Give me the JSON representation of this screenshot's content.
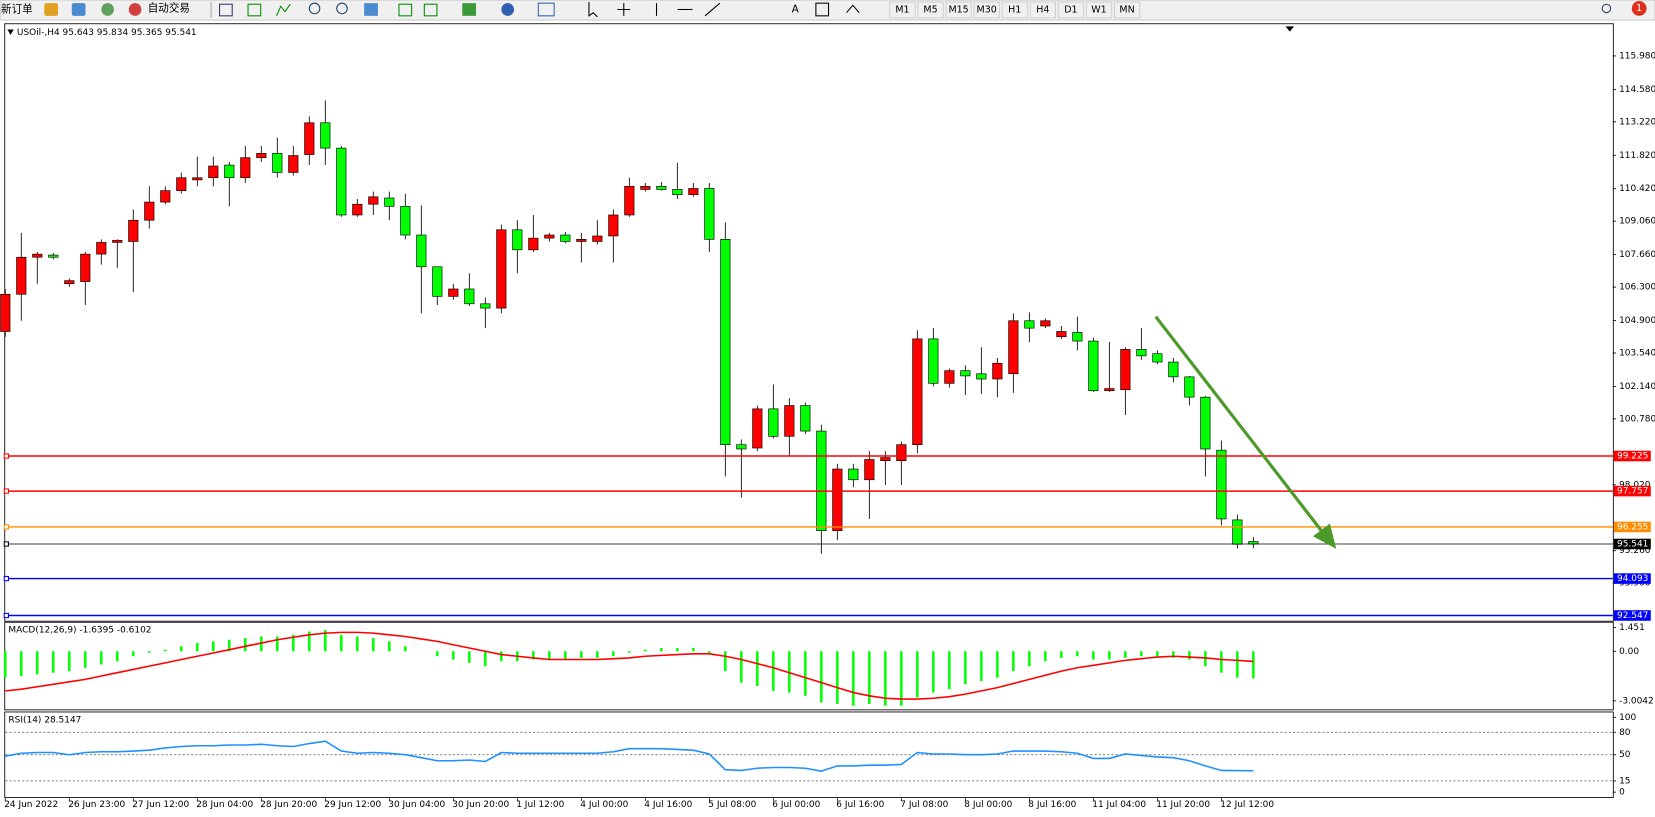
{
  "toolbar": {
    "new_order": "新订单",
    "auto_trading": "自动交易",
    "text_tool": "A",
    "timeframes": [
      "M1",
      "M5",
      "M15",
      "M30",
      "H1",
      "H4",
      "D1",
      "W1",
      "MN"
    ],
    "notifications": "1"
  },
  "chart_data": [
    {
      "type": "candlestick",
      "title": "USOil-,H4  95.643 95.834 95.365 95.541",
      "categories": [
        "24 Jun 2022",
        null,
        null,
        null,
        "26 Jun 23:00",
        null,
        null,
        null,
        "27 Jun 12:00",
        null,
        null,
        null,
        "28 Jun 04:00",
        null,
        null,
        null,
        "28 Jun 20:00",
        null,
        null,
        null,
        "29 Jun 12:00",
        null,
        null,
        null,
        "30 Jun 04:00",
        null,
        null,
        null,
        "30 Jun 20:00",
        null,
        null,
        null,
        "1 Jul 12:00",
        null,
        null,
        null,
        "4 Jul 00:00",
        null,
        null,
        null,
        "4 Jul 16:00",
        null,
        null,
        null,
        "5 Jul 08:00",
        null,
        null,
        null,
        "6 Jul 00:00",
        null,
        null,
        null,
        "6 Jul 16:00",
        null,
        null,
        null,
        "7 Jul 08:00",
        null,
        null,
        null,
        "8 Jul 00:00",
        null,
        null,
        null,
        "8 Jul 16:00",
        null,
        null,
        null,
        "11 Jul 04:00",
        null,
        null,
        null,
        "11 Jul 20:00",
        null,
        null,
        null,
        "12 Jul 12:00",
        null,
        null
      ],
      "ohlc": [
        [
          104.44,
          106.22,
          104.22,
          106.0
        ],
        [
          106.0,
          108.57,
          104.89,
          107.55
        ],
        [
          107.55,
          107.77,
          106.44,
          107.68
        ],
        [
          107.64,
          107.73,
          107.46,
          107.55
        ],
        [
          106.44,
          106.66,
          106.31,
          106.57
        ],
        [
          106.53,
          107.77,
          105.55,
          107.68
        ],
        [
          107.68,
          108.3,
          107.24,
          108.17
        ],
        [
          108.17,
          108.3,
          107.11,
          108.26
        ],
        [
          108.21,
          109.55,
          106.09,
          109.1
        ],
        [
          109.1,
          110.52,
          108.75,
          109.86
        ],
        [
          109.86,
          110.52,
          109.77,
          110.34
        ],
        [
          110.34,
          111.1,
          110.21,
          110.88
        ],
        [
          110.79,
          111.76,
          110.52,
          110.88
        ],
        [
          110.88,
          111.76,
          110.52,
          111.37
        ],
        [
          111.41,
          111.54,
          109.68,
          110.88
        ],
        [
          110.88,
          112.21,
          110.66,
          111.72
        ],
        [
          111.72,
          112.21,
          111.54,
          111.9
        ],
        [
          111.9,
          112.56,
          110.88,
          111.1
        ],
        [
          111.1,
          112.21,
          110.97,
          111.81
        ],
        [
          111.85,
          113.45,
          111.41,
          113.18
        ],
        [
          113.18,
          114.12,
          111.41,
          112.12
        ],
        [
          112.12,
          112.21,
          109.24,
          109.32
        ],
        [
          109.32,
          109.99,
          109.24,
          109.77
        ],
        [
          109.77,
          110.3,
          109.32,
          110.08
        ],
        [
          110.03,
          110.3,
          109.1,
          109.68
        ],
        [
          109.68,
          110.21,
          108.3,
          108.48
        ],
        [
          108.48,
          109.72,
          105.2,
          107.15
        ],
        [
          107.15,
          107.15,
          105.55,
          105.91
        ],
        [
          105.91,
          106.44,
          105.77,
          106.22
        ],
        [
          106.22,
          106.88,
          105.51,
          105.6
        ],
        [
          105.6,
          105.86,
          104.58,
          105.42
        ],
        [
          105.42,
          108.92,
          105.2,
          108.7
        ],
        [
          108.7,
          109.1,
          106.88,
          107.86
        ],
        [
          107.86,
          109.32,
          107.77,
          108.35
        ],
        [
          108.35,
          108.57,
          108.21,
          108.48
        ],
        [
          108.48,
          108.61,
          108.13,
          108.21
        ],
        [
          108.21,
          108.57,
          107.33,
          108.3
        ],
        [
          108.21,
          109.1,
          108.08,
          108.44
        ],
        [
          108.44,
          109.55,
          107.33,
          109.32
        ],
        [
          109.32,
          110.88,
          109.24,
          110.52
        ],
        [
          110.39,
          110.66,
          110.3,
          110.52
        ],
        [
          110.52,
          110.7,
          110.34,
          110.39
        ],
        [
          110.39,
          111.5,
          109.99,
          110.17
        ],
        [
          110.17,
          110.66,
          110.08,
          110.43
        ],
        [
          110.43,
          110.66,
          107.77,
          108.3
        ],
        [
          108.3,
          109.01,
          98.37,
          99.7
        ],
        [
          99.7,
          99.92,
          97.48,
          99.52
        ],
        [
          99.56,
          101.34,
          99.43,
          101.2
        ],
        [
          101.2,
          102.22,
          99.96,
          100.05
        ],
        [
          100.05,
          101.65,
          99.25,
          101.34
        ],
        [
          101.34,
          101.47,
          100.14,
          100.27
        ],
        [
          100.27,
          100.54,
          95.13,
          96.1
        ],
        [
          96.1,
          98.9,
          95.7,
          98.68
        ],
        [
          98.68,
          98.9,
          97.92,
          98.23
        ],
        [
          98.23,
          99.43,
          96.59,
          99.08
        ],
        [
          99.03,
          99.43,
          98.01,
          99.16
        ],
        [
          99.03,
          99.83,
          98.01,
          99.7
        ],
        [
          99.7,
          104.49,
          99.34,
          104.13
        ],
        [
          104.13,
          104.58,
          102.14,
          102.27
        ],
        [
          102.27,
          102.89,
          102.09,
          102.8
        ],
        [
          102.8,
          103.02,
          101.78,
          102.58
        ],
        [
          102.67,
          103.78,
          101.83,
          102.45
        ],
        [
          102.45,
          103.33,
          101.69,
          103.11
        ],
        [
          102.67,
          105.2,
          101.87,
          104.89
        ],
        [
          104.89,
          105.24,
          104.0,
          104.58
        ],
        [
          104.67,
          104.98,
          104.58,
          104.89
        ],
        [
          104.22,
          104.67,
          104.13,
          104.44
        ],
        [
          104.4,
          105.06,
          103.65,
          104.04
        ],
        [
          104.04,
          104.18,
          101.91,
          101.96
        ],
        [
          101.96,
          104.0,
          101.91,
          102.05
        ],
        [
          102.0,
          103.78,
          100.94,
          103.69
        ],
        [
          103.69,
          104.58,
          103.25,
          103.42
        ],
        [
          103.51,
          103.65,
          103.07,
          103.16
        ],
        [
          103.16,
          103.33,
          102.31,
          102.54
        ],
        [
          102.54,
          102.58,
          101.34,
          101.69
        ],
        [
          101.69,
          101.74,
          98.37,
          99.52
        ],
        [
          99.47,
          99.87,
          96.32,
          96.59
        ],
        [
          96.55,
          96.77,
          95.35,
          95.53
        ],
        [
          95.643,
          95.834,
          95.365,
          95.541
        ]
      ],
      "up_color": "#ff0000",
      "down_color": "#00ff00",
      "ylim": [
        92.33,
        117.35
      ],
      "yticks": [
        {
          "value": 115.98,
          "label": "115.980"
        },
        {
          "value": 114.58,
          "label": "114.580"
        },
        {
          "value": 113.22,
          "label": "113.220"
        },
        {
          "value": 111.82,
          "label": "111.820"
        },
        {
          "value": 110.42,
          "label": "110.420"
        },
        {
          "value": 109.06,
          "label": "109.060"
        },
        {
          "value": 107.66,
          "label": "107.660"
        },
        {
          "value": 106.3,
          "label": "106.300"
        },
        {
          "value": 104.9,
          "label": "104.900"
        },
        {
          "value": 103.54,
          "label": "103.540"
        },
        {
          "value": 102.14,
          "label": "102.140"
        },
        {
          "value": 100.78,
          "label": "100.780"
        },
        {
          "value": 98.02,
          "label": "98.020"
        },
        {
          "value": 95.26,
          "label": "95.260"
        },
        {
          "value": 93.9,
          "label": "93.900"
        }
      ],
      "hlines": [
        {
          "value": 99.225,
          "color": "#ff0000"
        },
        {
          "value": 97.757,
          "color": "#ff0000"
        },
        {
          "value": 96.255,
          "color": "#ff8c00"
        },
        {
          "value": 95.541,
          "color": "#000000"
        },
        {
          "value": 94.093,
          "color": "#0000ff"
        },
        {
          "value": 92.547,
          "color": "#0000ff"
        }
      ]
    },
    {
      "type": "macd",
      "title": "MACD(12,26,9) -1.6395 -0.6102",
      "ylim": [
        -3.52,
        1.73
      ],
      "yticks": [
        1.451,
        {
          "value": 0,
          "label": "0.00"
        },
        -3.0042
      ],
      "series": [
        {
          "style": "histogram",
          "color": "#00ff00",
          "values": [
            -1.6,
            -1.5,
            -1.4,
            -1.3,
            -1.2,
            -1.0,
            -0.8,
            -0.6,
            -0.3,
            -0.1,
            0.1,
            0.3,
            0.5,
            0.6,
            0.7,
            0.8,
            0.9,
            0.9,
            1.0,
            1.2,
            1.3,
            1.0,
            0.9,
            0.8,
            0.6,
            0.3,
            0.0,
            -0.3,
            -0.5,
            -0.7,
            -0.9,
            -0.6,
            -0.6,
            -0.5,
            -0.5,
            -0.5,
            -0.4,
            -0.4,
            -0.3,
            -0.1,
            0.1,
            0.2,
            0.2,
            0.2,
            -0.2,
            -1.2,
            -1.9,
            -2.1,
            -2.4,
            -2.5,
            -2.7,
            -3.1,
            -3.2,
            -3.3,
            -3.2,
            -3.3,
            -3.3,
            -2.8,
            -2.5,
            -2.3,
            -2.0,
            -1.8,
            -1.6,
            -1.2,
            -0.9,
            -0.6,
            -0.4,
            -0.3,
            -0.5,
            -0.5,
            -0.4,
            -0.3,
            -0.3,
            -0.4,
            -0.5,
            -0.9,
            -1.3,
            -1.6,
            -1.6395
          ]
        },
        {
          "style": "line",
          "color": "#ff0000",
          "values": [
            -2.4,
            -2.3,
            -2.15,
            -2.0,
            -1.85,
            -1.7,
            -1.5,
            -1.3,
            -1.1,
            -0.9,
            -0.7,
            -0.5,
            -0.3,
            -0.1,
            0.1,
            0.3,
            0.5,
            0.7,
            0.85,
            1.0,
            1.1,
            1.15,
            1.15,
            1.1,
            1.0,
            0.9,
            0.75,
            0.6,
            0.4,
            0.2,
            0.0,
            -0.2,
            -0.3,
            -0.4,
            -0.5,
            -0.5,
            -0.5,
            -0.5,
            -0.45,
            -0.4,
            -0.3,
            -0.25,
            -0.2,
            -0.15,
            -0.15,
            -0.3,
            -0.5,
            -0.75,
            -1.0,
            -1.3,
            -1.6,
            -1.9,
            -2.2,
            -2.5,
            -2.7,
            -2.85,
            -2.9,
            -2.9,
            -2.85,
            -2.75,
            -2.6,
            -2.4,
            -2.2,
            -1.95,
            -1.7,
            -1.45,
            -1.2,
            -1.0,
            -0.85,
            -0.7,
            -0.55,
            -0.45,
            -0.35,
            -0.3,
            -0.35,
            -0.4,
            -0.5,
            -0.55,
            -0.6102
          ]
        }
      ]
    },
    {
      "type": "oscillator",
      "title": "RSI(14) 28.5147",
      "ylim": [
        -5,
        105
      ],
      "yticks": [
        100,
        80,
        50,
        15,
        0
      ],
      "levels": [
        80,
        50,
        15
      ],
      "series": [
        {
          "style": "line",
          "color": "#1e90ff",
          "values": [
            48,
            52,
            53,
            53,
            50,
            53,
            54,
            54,
            55,
            56,
            59,
            61,
            62,
            62,
            63,
            63,
            64,
            62,
            61,
            65,
            68,
            55,
            52,
            53,
            52,
            50,
            46,
            42,
            42,
            43,
            41,
            53,
            52,
            52,
            52,
            52,
            52,
            52,
            54,
            58,
            58,
            58,
            57,
            56,
            51,
            30,
            29,
            32,
            33,
            33,
            32,
            28,
            35,
            35,
            36,
            36,
            37,
            53,
            51,
            51,
            50,
            50,
            51,
            55,
            55,
            55,
            54,
            52,
            45,
            45,
            51,
            49,
            47,
            46,
            42,
            35,
            29,
            28.9,
            28.5147
          ]
        }
      ]
    }
  ]
}
